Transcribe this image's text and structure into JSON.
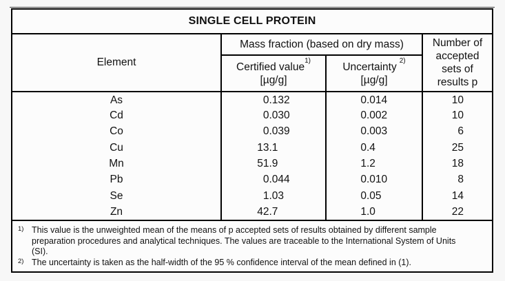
{
  "title": "SINGLE CELL PROTEIN",
  "table": {
    "col_element": "Element",
    "col_mass_fraction": "Mass fraction (based on dry mass)",
    "col_certified": {
      "label": "Certified value",
      "sup": "1)",
      "unit": "[µg/g]"
    },
    "col_uncertainty": {
      "label": "Uncertainty",
      "sup": "2)",
      "unit": "[µg/g]"
    },
    "col_sets": "Number of accepted sets of results p",
    "rows": [
      {
        "element": "As",
        "certified": "0.132",
        "uncertainty": "0.014",
        "sets": "10"
      },
      {
        "element": "Cd",
        "certified": "0.030",
        "uncertainty": "0.002",
        "sets": "10"
      },
      {
        "element": "Co",
        "certified": "0.039",
        "uncertainty": "0.003",
        "sets": "6"
      },
      {
        "element": "Cu",
        "certified": "13.1",
        "uncertainty": "0.4",
        "sets": "25"
      },
      {
        "element": "Mn",
        "certified": "51.9",
        "uncertainty": "1.2",
        "sets": "18"
      },
      {
        "element": "Pb",
        "certified": "0.044",
        "uncertainty": "0.010",
        "sets": "8"
      },
      {
        "element": "Se",
        "certified": "1.03",
        "uncertainty": "0.05",
        "sets": "14"
      },
      {
        "element": "Zn",
        "certified": "42.7",
        "uncertainty": "1.0",
        "sets": "22"
      }
    ]
  },
  "footnotes": [
    {
      "marker": "1)",
      "text": "This value is the unweighted mean of the means of p accepted sets of results obtained by different sample preparation procedures and analytical techniques. The values are traceable to the International System of Units (SI)."
    },
    {
      "marker": "2)",
      "text": "The uncertainty is taken as the half-width of the 95 % confidence interval of the mean defined in (1)."
    }
  ],
  "colors": {
    "background": "#f7f7f7",
    "table_background": "#fcfcfc",
    "border": "#000000",
    "text": "#111111"
  }
}
